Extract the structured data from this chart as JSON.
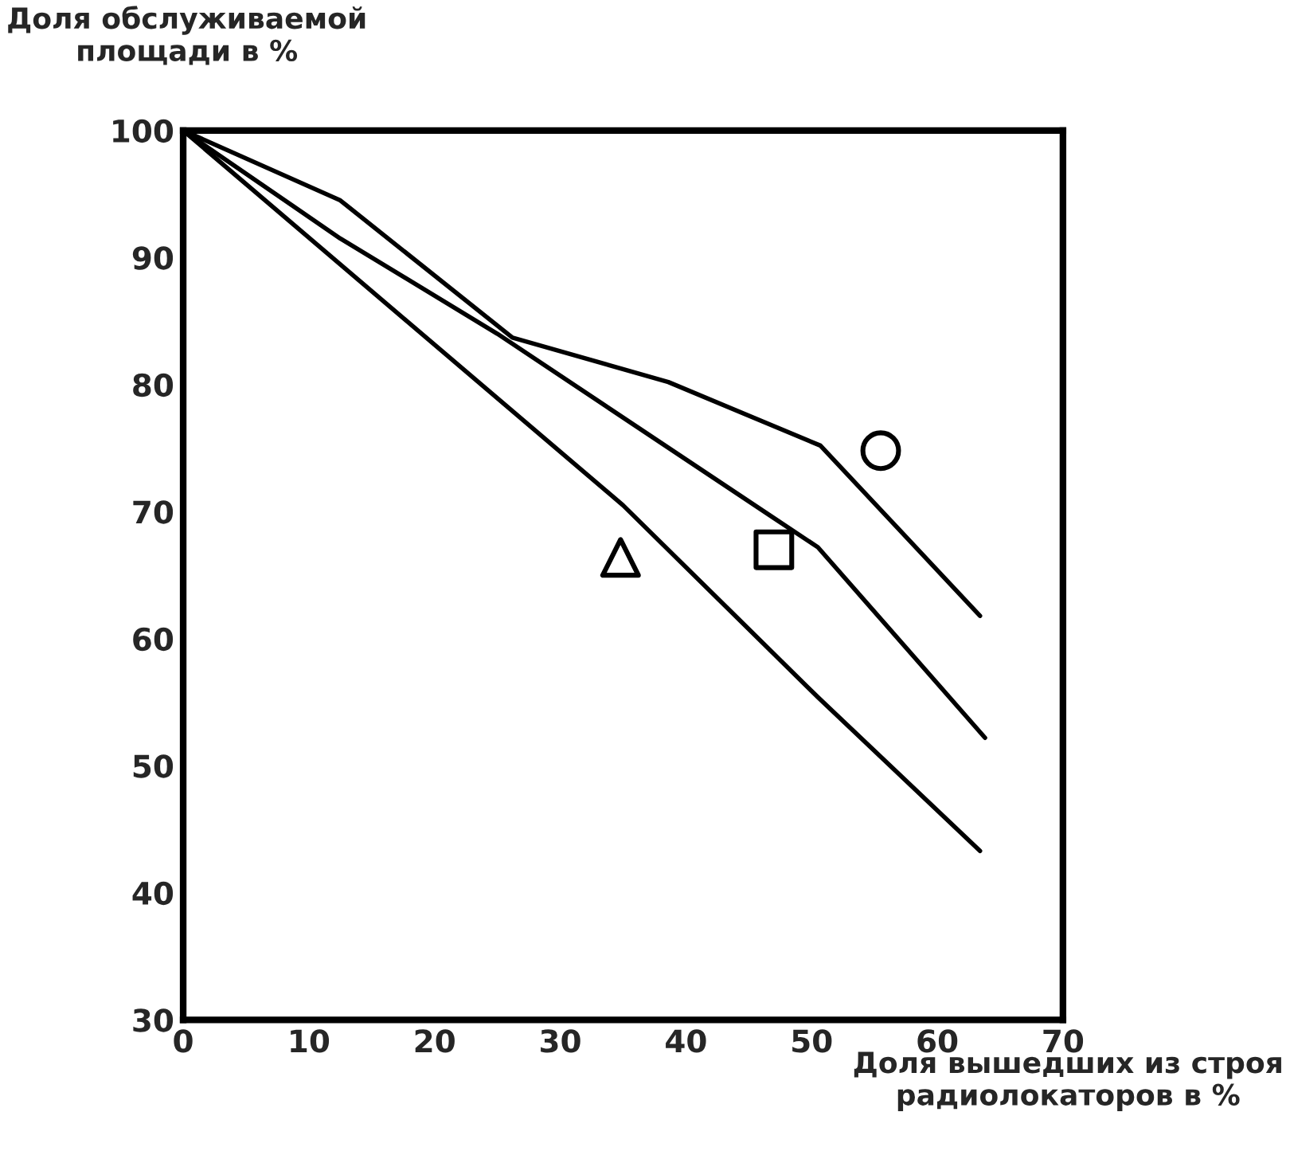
{
  "chart_data": {
    "type": "line",
    "xlabel": "Доля вышедших из строя\nрадиолокаторов в %",
    "ylabel": "Доля обслуживаемой\nплощади в %",
    "xlim": [
      0,
      70
    ],
    "ylim": [
      30,
      100
    ],
    "xticks": [
      0,
      10,
      20,
      30,
      40,
      50,
      60,
      70
    ],
    "yticks": [
      30,
      40,
      50,
      60,
      70,
      80,
      90,
      100
    ],
    "grid": false,
    "legend": false,
    "series": [
      {
        "color": "#000000",
        "x": [
          0,
          12.5,
          26.2,
          38.6,
          50.7,
          63.4
        ],
        "values": [
          100,
          94.5,
          83.7,
          80.2,
          75.2,
          61.8
        ]
      },
      {
        "color": "#000000",
        "x": [
          0,
          12.5,
          25,
          47,
          50.5,
          63.8
        ],
        "values": [
          100,
          91.5,
          84,
          69.5,
          67.2,
          52.2
        ]
      },
      {
        "color": "#000000",
        "x": [
          0,
          35,
          50.6,
          63.4
        ],
        "values": [
          100,
          70.5,
          55.3,
          43.3
        ]
      },
      {
        "type": "scatter",
        "marker": "circle",
        "color": "#000000",
        "x": [
          55.5
        ],
        "values": [
          74.8
        ]
      },
      {
        "type": "scatter",
        "marker": "square",
        "color": "#000000",
        "x": [
          47
        ],
        "values": [
          67
        ]
      },
      {
        "type": "scatter",
        "marker": "triangle",
        "color": "#000000",
        "x": [
          34.8
        ],
        "values": [
          66.4
        ]
      }
    ]
  }
}
